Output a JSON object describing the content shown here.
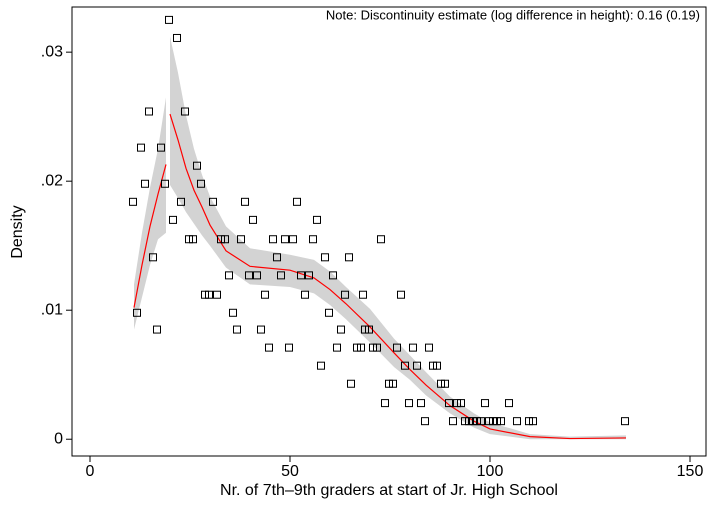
{
  "chart_data": {
    "type": "scatter",
    "note": "Note: Discontinuity estimate (log difference in height): 0.16 (0.19)",
    "x_label": "Nr. of 7th–9th graders at start of Jr. High School",
    "y_label": "Density",
    "xlim": [
      -4.5,
      154
    ],
    "xticks": [
      0,
      50,
      100,
      150
    ],
    "ylim": [
      -0.0013,
      0.0335
    ],
    "yticks": [
      0,
      {
        "value": 0.01,
        "label": ".01"
      },
      {
        "value": 0.02,
        "label": ".02"
      },
      {
        "value": 0.03,
        "label": ".03"
      }
    ],
    "marker_color": "#000000",
    "x": [
      10.75,
      11.75,
      12.75,
      13.75,
      14.75,
      15.75,
      16.75,
      17.75,
      18.75,
      19.75,
      20.75,
      21.75,
      22.75,
      23.75,
      24.75,
      25.75,
      26.75,
      27.75,
      28.75,
      29.75,
      30.75,
      31.75,
      32.75,
      33.75,
      34.75,
      35.75,
      36.75,
      37.75,
      38.75,
      39.75,
      40.75,
      41.75,
      42.75,
      43.75,
      44.75,
      45.75,
      46.75,
      47.75,
      48.75,
      49.75,
      50.75,
      51.75,
      52.75,
      53.75,
      54.75,
      55.75,
      56.75,
      57.75,
      58.75,
      59.75,
      60.75,
      61.75,
      62.75,
      63.75,
      64.75,
      65.25,
      66.75,
      67.75,
      68.25,
      68.75,
      69.75,
      70.75,
      71.75,
      72.75,
      73.75,
      74.75,
      75.75,
      76.75,
      77.75,
      78.75,
      79.75,
      80.75,
      81.75,
      82.75,
      83.75,
      84.75,
      85.75,
      86.75,
      87.75,
      88.75,
      89.75,
      90.75,
      91.75,
      92.75,
      93.75,
      94.75,
      95.75,
      96.75,
      97.75,
      98.75,
      99.75,
      100.75,
      101.75,
      102.75,
      104.75,
      106.75,
      109.75,
      110.75,
      133.75
    ],
    "values": [
      0.0184,
      0.0098,
      0.0226,
      0.0198,
      0.0254,
      0.0141,
      0.0085,
      0.0226,
      0.0198,
      0.0325,
      0.017,
      0.0311,
      0.0184,
      0.0254,
      0.0155,
      0.0155,
      0.0212,
      0.0198,
      0.0112,
      0.0112,
      0.0184,
      0.0112,
      0.0155,
      0.0155,
      0.0127,
      0.0098,
      0.0085,
      0.0155,
      0.0184,
      0.0127,
      0.017,
      0.0127,
      0.0085,
      0.0112,
      0.0071,
      0.0155,
      0.0141,
      0.0127,
      0.0155,
      0.0071,
      0.0155,
      0.0184,
      0.0127,
      0.0112,
      0.0127,
      0.0155,
      0.017,
      0.0057,
      0.0141,
      0.0098,
      0.0127,
      0.0071,
      0.0085,
      0.0112,
      0.0141,
      0.0043,
      0.0071,
      0.0071,
      0.0112,
      0.0085,
      0.0085,
      0.0071,
      0.0071,
      0.0155,
      0.0028,
      0.0043,
      0.0043,
      0.0071,
      0.0112,
      0.0057,
      0.0028,
      0.0071,
      0.0057,
      0.0028,
      0.0014,
      0.0071,
      0.0057,
      0.0057,
      0.0043,
      0.0043,
      0.0028,
      0.0014,
      0.0028,
      0.0028,
      0.0014,
      0.0014,
      0.0014,
      0.0014,
      0.0014,
      0.0028,
      0.0014,
      0.0014,
      0.0014,
      0.0014,
      0.0028,
      0.0014,
      0.0014,
      0.0014,
      0.0014
    ],
    "fits": [
      {
        "color": "#ff0000",
        "band_color": "#d3d3d3",
        "x": [
          11,
          13,
          15,
          17,
          19
        ],
        "values": [
          0.0102,
          0.0135,
          0.0165,
          0.019,
          0.0213
        ],
        "upper": [
          0.012,
          0.016,
          0.0195,
          0.0225,
          0.0265
        ],
        "lower": [
          0.0085,
          0.011,
          0.0135,
          0.0155,
          0.016
        ]
      },
      {
        "color": "#ff0000",
        "band_color": "#d3d3d3",
        "x": [
          20,
          22,
          24,
          26,
          28,
          30,
          34,
          40,
          50,
          56,
          60,
          64,
          70,
          76,
          80,
          84,
          90,
          96,
          100,
          110,
          120,
          134
        ],
        "values": [
          0.0252,
          0.0232,
          0.021,
          0.0193,
          0.018,
          0.0166,
          0.0146,
          0.0134,
          0.0131,
          0.0125,
          0.0116,
          0.0105,
          0.0087,
          0.0067,
          0.0054,
          0.0042,
          0.0026,
          0.0014,
          0.0008,
          0.0002,
          5e-05,
          0.0001
        ],
        "upper": [
          0.0312,
          0.0284,
          0.0251,
          0.0225,
          0.0205,
          0.0188,
          0.0165,
          0.0148,
          0.0143,
          0.0139,
          0.013,
          0.0118,
          0.0101,
          0.0078,
          0.0065,
          0.0052,
          0.0033,
          0.002,
          0.0013,
          0.0004,
          0.0002,
          0.0003
        ],
        "lower": [
          0.0197,
          0.0187,
          0.0176,
          0.0167,
          0.0158,
          0.015,
          0.0133,
          0.012,
          0.0118,
          0.0113,
          0.0104,
          0.0093,
          0.0075,
          0.0056,
          0.0046,
          0.0034,
          0.002,
          0.0009,
          0.0004,
          0,
          0,
          0
        ]
      }
    ]
  }
}
